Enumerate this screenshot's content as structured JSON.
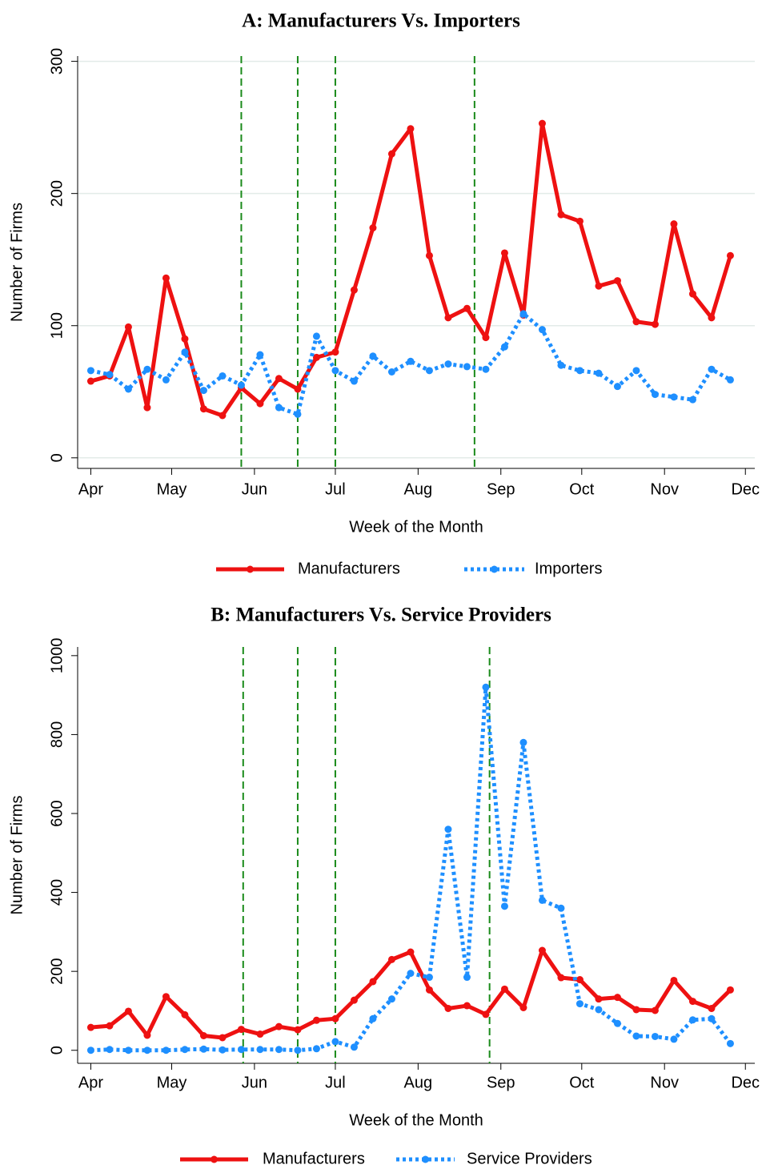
{
  "chart_data": [
    {
      "type": "line",
      "title": "A: Manufacturers Vs. Importers",
      "xlabel": "Week of the Month",
      "ylabel": "Number of Firms",
      "x": [
        0,
        1,
        2,
        3,
        4,
        5,
        6,
        7,
        8,
        9,
        10,
        11,
        12,
        13,
        14,
        15,
        16,
        17,
        18,
        19,
        20,
        21,
        22,
        23,
        24,
        25,
        26,
        27,
        28,
        29,
        30,
        31,
        32,
        33,
        34
      ],
      "xlim": [
        -0.7,
        35.3
      ],
      "xticks": [
        {
          "value": 0,
          "label": "Apr"
        },
        {
          "value": 4.3,
          "label": "May"
        },
        {
          "value": 8.7,
          "label": "Jun"
        },
        {
          "value": 13.0,
          "label": "Jul"
        },
        {
          "value": 17.4,
          "label": "Aug"
        },
        {
          "value": 21.8,
          "label": "Sep"
        },
        {
          "value": 26.1,
          "label": "Oct"
        },
        {
          "value": 30.5,
          "label": "Nov"
        },
        {
          "value": 34.8,
          "label": "Dec"
        }
      ],
      "ylim": [
        -8,
        304
      ],
      "yticks": [
        0,
        100,
        200,
        300
      ],
      "grid": true,
      "legend": "bottom",
      "vlines": [
        8.0,
        11.0,
        13.0,
        20.4
      ],
      "vline_color": "#1a8a1a",
      "series": [
        {
          "name": "Manufacturers",
          "color": "#ee1111",
          "style": "solid",
          "values": [
            58,
            62,
            99,
            38,
            136,
            90,
            37,
            32,
            53,
            41,
            60,
            52,
            76,
            80,
            127,
            174,
            230,
            249,
            153,
            106,
            113,
            91,
            155,
            108,
            253,
            184,
            179,
            130,
            134,
            103,
            101,
            177,
            124,
            106,
            153
          ]
        },
        {
          "name": "Importers",
          "color": "#1e8fff",
          "style": "dotted",
          "values": [
            66,
            63,
            52,
            67,
            59,
            80,
            51,
            62,
            55,
            78,
            38,
            33,
            92,
            66,
            58,
            77,
            65,
            73,
            66,
            71,
            69,
            67,
            84,
            109,
            97,
            70,
            66,
            64,
            54,
            66,
            48,
            46,
            44,
            67,
            59
          ]
        }
      ]
    },
    {
      "type": "line",
      "title": "B: Manufacturers Vs. Service Providers",
      "xlabel": "Week of the Month",
      "ylabel": "Number of Firms",
      "x": [
        0,
        1,
        2,
        3,
        4,
        5,
        6,
        7,
        8,
        9,
        10,
        11,
        12,
        13,
        14,
        15,
        16,
        17,
        18,
        19,
        20,
        21,
        22,
        23,
        24,
        25,
        26,
        27,
        28,
        29,
        30,
        31,
        32,
        33,
        34
      ],
      "xlim": [
        -0.7,
        35.3
      ],
      "xticks": [
        {
          "value": 0,
          "label": "Apr"
        },
        {
          "value": 4.3,
          "label": "May"
        },
        {
          "value": 8.7,
          "label": "Jun"
        },
        {
          "value": 13.0,
          "label": "Jul"
        },
        {
          "value": 17.4,
          "label": "Aug"
        },
        {
          "value": 21.8,
          "label": "Sep"
        },
        {
          "value": 26.1,
          "label": "Oct"
        },
        {
          "value": 30.5,
          "label": "Nov"
        },
        {
          "value": 34.8,
          "label": "Dec"
        }
      ],
      "ylim": [
        -33,
        1022
      ],
      "yticks": [
        0,
        200,
        400,
        600,
        800,
        1000
      ],
      "grid": false,
      "legend": "bottom",
      "vlines": [
        8.1,
        11.0,
        13.0,
        21.2
      ],
      "vline_color": "#1a8a1a",
      "series": [
        {
          "name": "Manufacturers",
          "color": "#ee1111",
          "style": "solid",
          "values": [
            58,
            62,
            99,
            38,
            136,
            90,
            37,
            32,
            53,
            41,
            60,
            52,
            76,
            80,
            127,
            174,
            230,
            249,
            153,
            106,
            113,
            91,
            155,
            108,
            253,
            184,
            179,
            130,
            134,
            103,
            101,
            177,
            124,
            106,
            153
          ]
        },
        {
          "name": "Service Providers",
          "color": "#1e8fff",
          "style": "dotted",
          "values": [
            0,
            2,
            0,
            0,
            0,
            2,
            3,
            1,
            2,
            2,
            2,
            0,
            4,
            22,
            8,
            80,
            130,
            195,
            185,
            560,
            185,
            920,
            365,
            780,
            380,
            360,
            118,
            103,
            68,
            36,
            35,
            28,
            77,
            80,
            17
          ]
        }
      ]
    }
  ]
}
